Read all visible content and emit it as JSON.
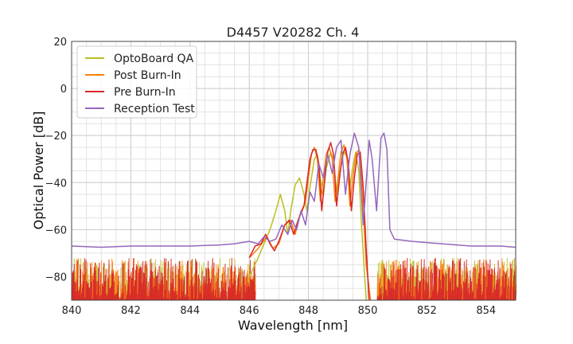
{
  "chart_data": {
    "type": "line",
    "title": "D4457 V20282 Ch. 4",
    "xlabel": "Wavelength [nm]",
    "ylabel": "Optical Power [dB]",
    "xlim": [
      840,
      855
    ],
    "ylim": [
      -90,
      20
    ],
    "xticks": [
      "840",
      "842",
      "844",
      "846",
      "848",
      "850",
      "852",
      "854"
    ],
    "yticks": [
      "20",
      "0",
      "−20",
      "−40",
      "−60",
      "−80"
    ],
    "grid": true,
    "legend_position": "top-left",
    "noise_floor": {
      "x_start": 840,
      "x_end": 855,
      "y_min": -90,
      "y_max": -72
    },
    "series": [
      {
        "name": "OptoBoard QA",
        "color": "#bcbd22",
        "points": [
          [
            846.0,
            -80
          ],
          [
            846.3,
            -72
          ],
          [
            846.5,
            -66
          ],
          [
            846.7,
            -60
          ],
          [
            846.9,
            -52
          ],
          [
            847.05,
            -45
          ],
          [
            847.2,
            -52
          ],
          [
            847.3,
            -62
          ],
          [
            847.4,
            -52
          ],
          [
            847.55,
            -41
          ],
          [
            847.7,
            -38
          ],
          [
            847.85,
            -45
          ],
          [
            847.95,
            -52
          ],
          [
            848.05,
            -42
          ],
          [
            848.2,
            -30
          ],
          [
            848.3,
            -28
          ],
          [
            848.4,
            -38
          ],
          [
            848.5,
            -46
          ],
          [
            848.6,
            -34
          ],
          [
            848.75,
            -27
          ],
          [
            848.85,
            -30
          ],
          [
            848.95,
            -45
          ],
          [
            849.05,
            -36
          ],
          [
            849.2,
            -27
          ],
          [
            849.3,
            -29
          ],
          [
            849.4,
            -42
          ],
          [
            849.5,
            -33
          ],
          [
            849.6,
            -27
          ],
          [
            849.7,
            -35
          ],
          [
            849.8,
            -60
          ],
          [
            849.95,
            -90
          ]
        ]
      },
      {
        "name": "Post Burn-In",
        "color": "#ff7f0e",
        "points": [
          [
            846.0,
            -72
          ],
          [
            846.3,
            -68
          ],
          [
            846.6,
            -63
          ],
          [
            846.8,
            -68
          ],
          [
            847.0,
            -66
          ],
          [
            847.2,
            -58
          ],
          [
            847.4,
            -56
          ],
          [
            847.55,
            -62
          ],
          [
            847.7,
            -54
          ],
          [
            847.9,
            -48
          ],
          [
            848.0,
            -38
          ],
          [
            848.1,
            -28
          ],
          [
            848.2,
            -25
          ],
          [
            848.3,
            -30
          ],
          [
            848.4,
            -48
          ],
          [
            848.5,
            -38
          ],
          [
            848.6,
            -28
          ],
          [
            848.7,
            -25
          ],
          [
            848.8,
            -30
          ],
          [
            848.9,
            -48
          ],
          [
            849.0,
            -38
          ],
          [
            849.1,
            -27
          ],
          [
            849.2,
            -24
          ],
          [
            849.3,
            -30
          ],
          [
            849.4,
            -50
          ],
          [
            849.5,
            -38
          ],
          [
            849.6,
            -28
          ],
          [
            849.7,
            -26
          ],
          [
            849.8,
            -40
          ],
          [
            849.95,
            -75
          ],
          [
            850.1,
            -90
          ]
        ]
      },
      {
        "name": "Pre Burn-In",
        "color": "#d62728",
        "points": [
          [
            846.0,
            -72
          ],
          [
            846.2,
            -67
          ],
          [
            846.4,
            -66
          ],
          [
            846.55,
            -62
          ],
          [
            846.7,
            -66
          ],
          [
            846.85,
            -69
          ],
          [
            847.0,
            -65
          ],
          [
            847.2,
            -58
          ],
          [
            847.35,
            -56
          ],
          [
            847.5,
            -62
          ],
          [
            847.65,
            -56
          ],
          [
            847.85,
            -50
          ],
          [
            847.95,
            -40
          ],
          [
            848.05,
            -30
          ],
          [
            848.15,
            -26
          ],
          [
            848.25,
            -26
          ],
          [
            848.35,
            -32
          ],
          [
            848.45,
            -52
          ],
          [
            848.55,
            -38
          ],
          [
            848.65,
            -27
          ],
          [
            848.75,
            -23
          ],
          [
            848.85,
            -28
          ],
          [
            848.95,
            -50
          ],
          [
            849.05,
            -38
          ],
          [
            849.15,
            -28
          ],
          [
            849.25,
            -25
          ],
          [
            849.35,
            -32
          ],
          [
            849.45,
            -52
          ],
          [
            849.55,
            -38
          ],
          [
            849.65,
            -28
          ],
          [
            849.75,
            -27
          ],
          [
            849.85,
            -42
          ],
          [
            849.95,
            -68
          ],
          [
            850.05,
            -90
          ]
        ]
      },
      {
        "name": "Reception Test",
        "color": "#9467bd",
        "points": [
          [
            840.0,
            -67
          ],
          [
            841.0,
            -67.5
          ],
          [
            842.0,
            -67
          ],
          [
            843.0,
            -67
          ],
          [
            844.0,
            -67
          ],
          [
            845.0,
            -66.5
          ],
          [
            845.5,
            -66
          ],
          [
            846.0,
            -65
          ],
          [
            846.3,
            -66
          ],
          [
            846.5,
            -63
          ],
          [
            846.7,
            -65
          ],
          [
            846.9,
            -64
          ],
          [
            847.1,
            -58
          ],
          [
            847.3,
            -62
          ],
          [
            847.45,
            -56
          ],
          [
            847.6,
            -60
          ],
          [
            847.75,
            -52
          ],
          [
            847.9,
            -58
          ],
          [
            848.05,
            -44
          ],
          [
            848.2,
            -48
          ],
          [
            848.35,
            -32
          ],
          [
            848.5,
            -38
          ],
          [
            848.65,
            -28
          ],
          [
            848.8,
            -36
          ],
          [
            848.95,
            -25
          ],
          [
            849.1,
            -22
          ],
          [
            849.25,
            -45
          ],
          [
            849.4,
            -28
          ],
          [
            849.55,
            -19
          ],
          [
            849.7,
            -25
          ],
          [
            849.85,
            -58
          ],
          [
            849.95,
            -40
          ],
          [
            850.05,
            -22
          ],
          [
            850.15,
            -30
          ],
          [
            850.3,
            -52
          ],
          [
            850.45,
            -21
          ],
          [
            850.55,
            -19
          ],
          [
            850.65,
            -26
          ],
          [
            850.75,
            -60
          ],
          [
            850.9,
            -64
          ],
          [
            851.5,
            -65
          ],
          [
            852.5,
            -66
          ],
          [
            853.5,
            -67
          ],
          [
            854.5,
            -67
          ],
          [
            855.0,
            -67.5
          ]
        ]
      }
    ]
  }
}
